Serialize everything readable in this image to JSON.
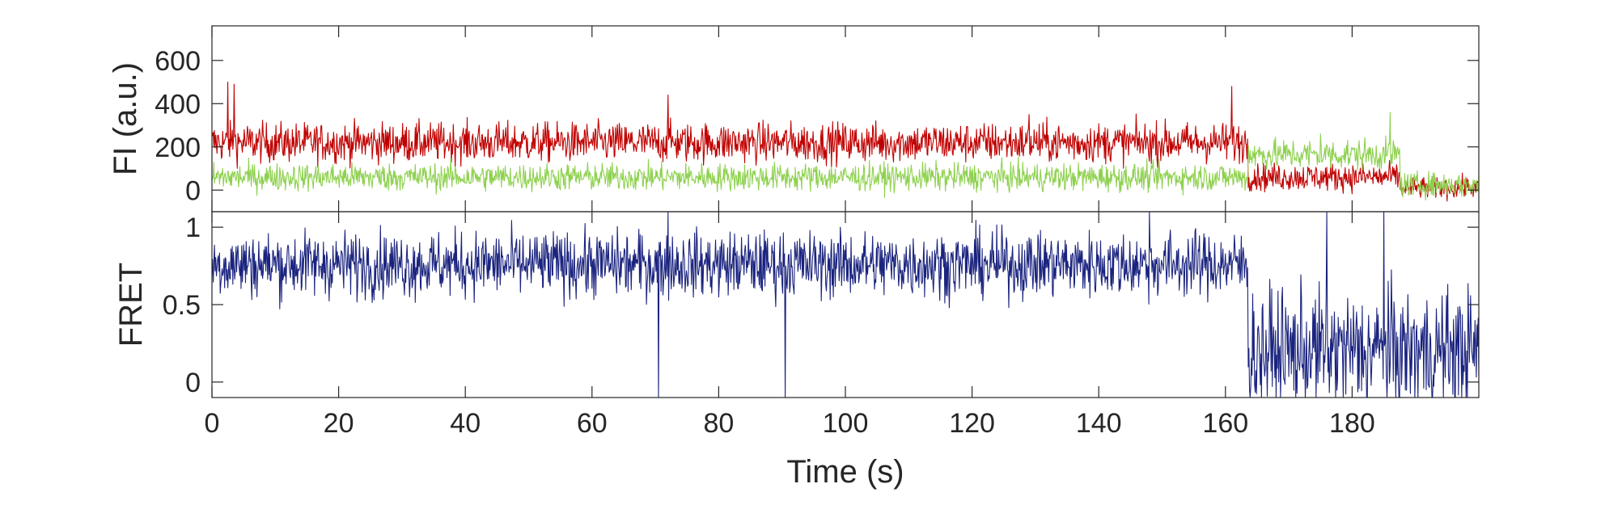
{
  "chart_data": [
    {
      "type": "line",
      "title": "",
      "xlabel": "",
      "ylabel": "FI (a.u.)",
      "xlim": [
        0,
        200
      ],
      "ylim": [
        -100,
        760
      ],
      "yticks": [
        0,
        200,
        400,
        600
      ],
      "ytick_labels": [
        "0",
        "200",
        "400",
        "600"
      ],
      "grid": false,
      "legend": "none",
      "series": [
        {
          "color": "#c00000",
          "segments": [
            {
              "from": 0,
              "to": 163.5,
              "mean": 220,
              "noise": 65
            },
            {
              "from": 163.5,
              "to": 187.5,
              "mean": 60,
              "noise": 45
            },
            {
              "from": 187.5,
              "to": 200,
              "mean": 10,
              "noise": 35
            }
          ],
          "spikes": [
            [
              2.5,
              500
            ],
            [
              3.5,
              490
            ],
            [
              72,
              440
            ],
            [
              161,
              480
            ],
            [
              129,
              350
            ]
          ]
        },
        {
          "color": "#8ed14f",
          "segments": [
            {
              "from": 0,
              "to": 163.5,
              "mean": 60,
              "noise": 45
            },
            {
              "from": 163.5,
              "to": 187.5,
              "mean": 165,
              "noise": 50
            },
            {
              "from": 187.5,
              "to": 200,
              "mean": 25,
              "noise": 40
            }
          ],
          "spikes": [
            [
              186,
              360
            ],
            [
              175,
              260
            ]
          ]
        }
      ]
    },
    {
      "type": "line",
      "title": "",
      "xlabel": "Time (s)",
      "ylabel": "FRET",
      "xlim": [
        0,
        200
      ],
      "ylim": [
        -0.1,
        1.1
      ],
      "xticks": [
        0,
        20,
        40,
        60,
        80,
        100,
        120,
        140,
        160,
        180
      ],
      "xtick_labels": [
        "0",
        "20",
        "40",
        "60",
        "80",
        "100",
        "120",
        "140",
        "160",
        "180"
      ],
      "yticks": [
        0,
        0.5,
        1
      ],
      "ytick_labels": [
        "0",
        "0.5",
        "1"
      ],
      "grid": false,
      "legend": "none",
      "series": [
        {
          "color": "#1a237e",
          "segments": [
            {
              "from": 0,
              "to": 163.5,
              "mean": 0.76,
              "noise": 0.15
            },
            {
              "from": 163.5,
              "to": 200,
              "mean": 0.2,
              "noise": 0.28
            }
          ],
          "spikes": [
            [
              70.5,
              -0.1
            ],
            [
              90.5,
              -0.1
            ],
            [
              72,
              1.1
            ],
            [
              148,
              1.1
            ],
            [
              176,
              1.1
            ],
            [
              185,
              1.1
            ]
          ]
        }
      ]
    }
  ]
}
